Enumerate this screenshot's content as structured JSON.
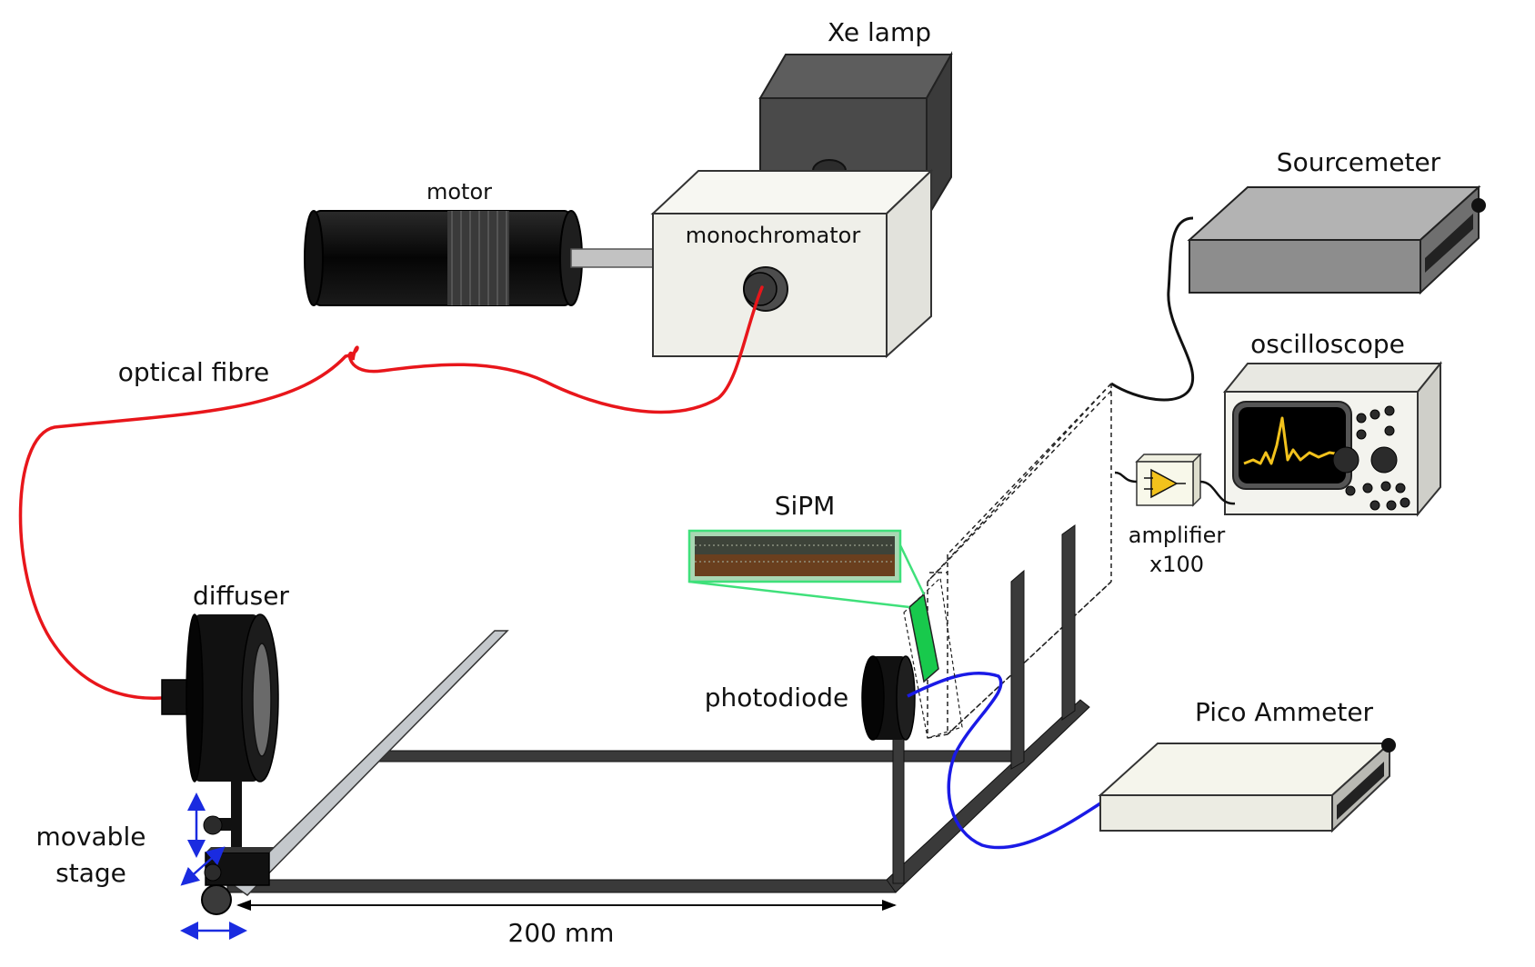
{
  "labels": {
    "xe_lamp": "Xe lamp",
    "motor": "motor",
    "monochromator": "monochromator",
    "optical_fibre": "optical fibre",
    "sourcemeter": "Sourcemeter",
    "oscilloscope": "oscilloscope",
    "sipm": "SiPM",
    "amplifier": "amplifier",
    "amplifier_gain": "x100",
    "diffuser": "diffuser",
    "photodiode": "photodiode",
    "pico_ammeter": "Pico Ammeter",
    "movable": "movable",
    "stage": "stage",
    "distance": "200 mm"
  },
  "colors": {
    "fibre": "#e8161b",
    "photodiode_cable": "#1a1ae6",
    "sipm_link": "#3fe07a",
    "signal_trace": "#f2c21c",
    "stage_arrows": "#1a2be0"
  }
}
